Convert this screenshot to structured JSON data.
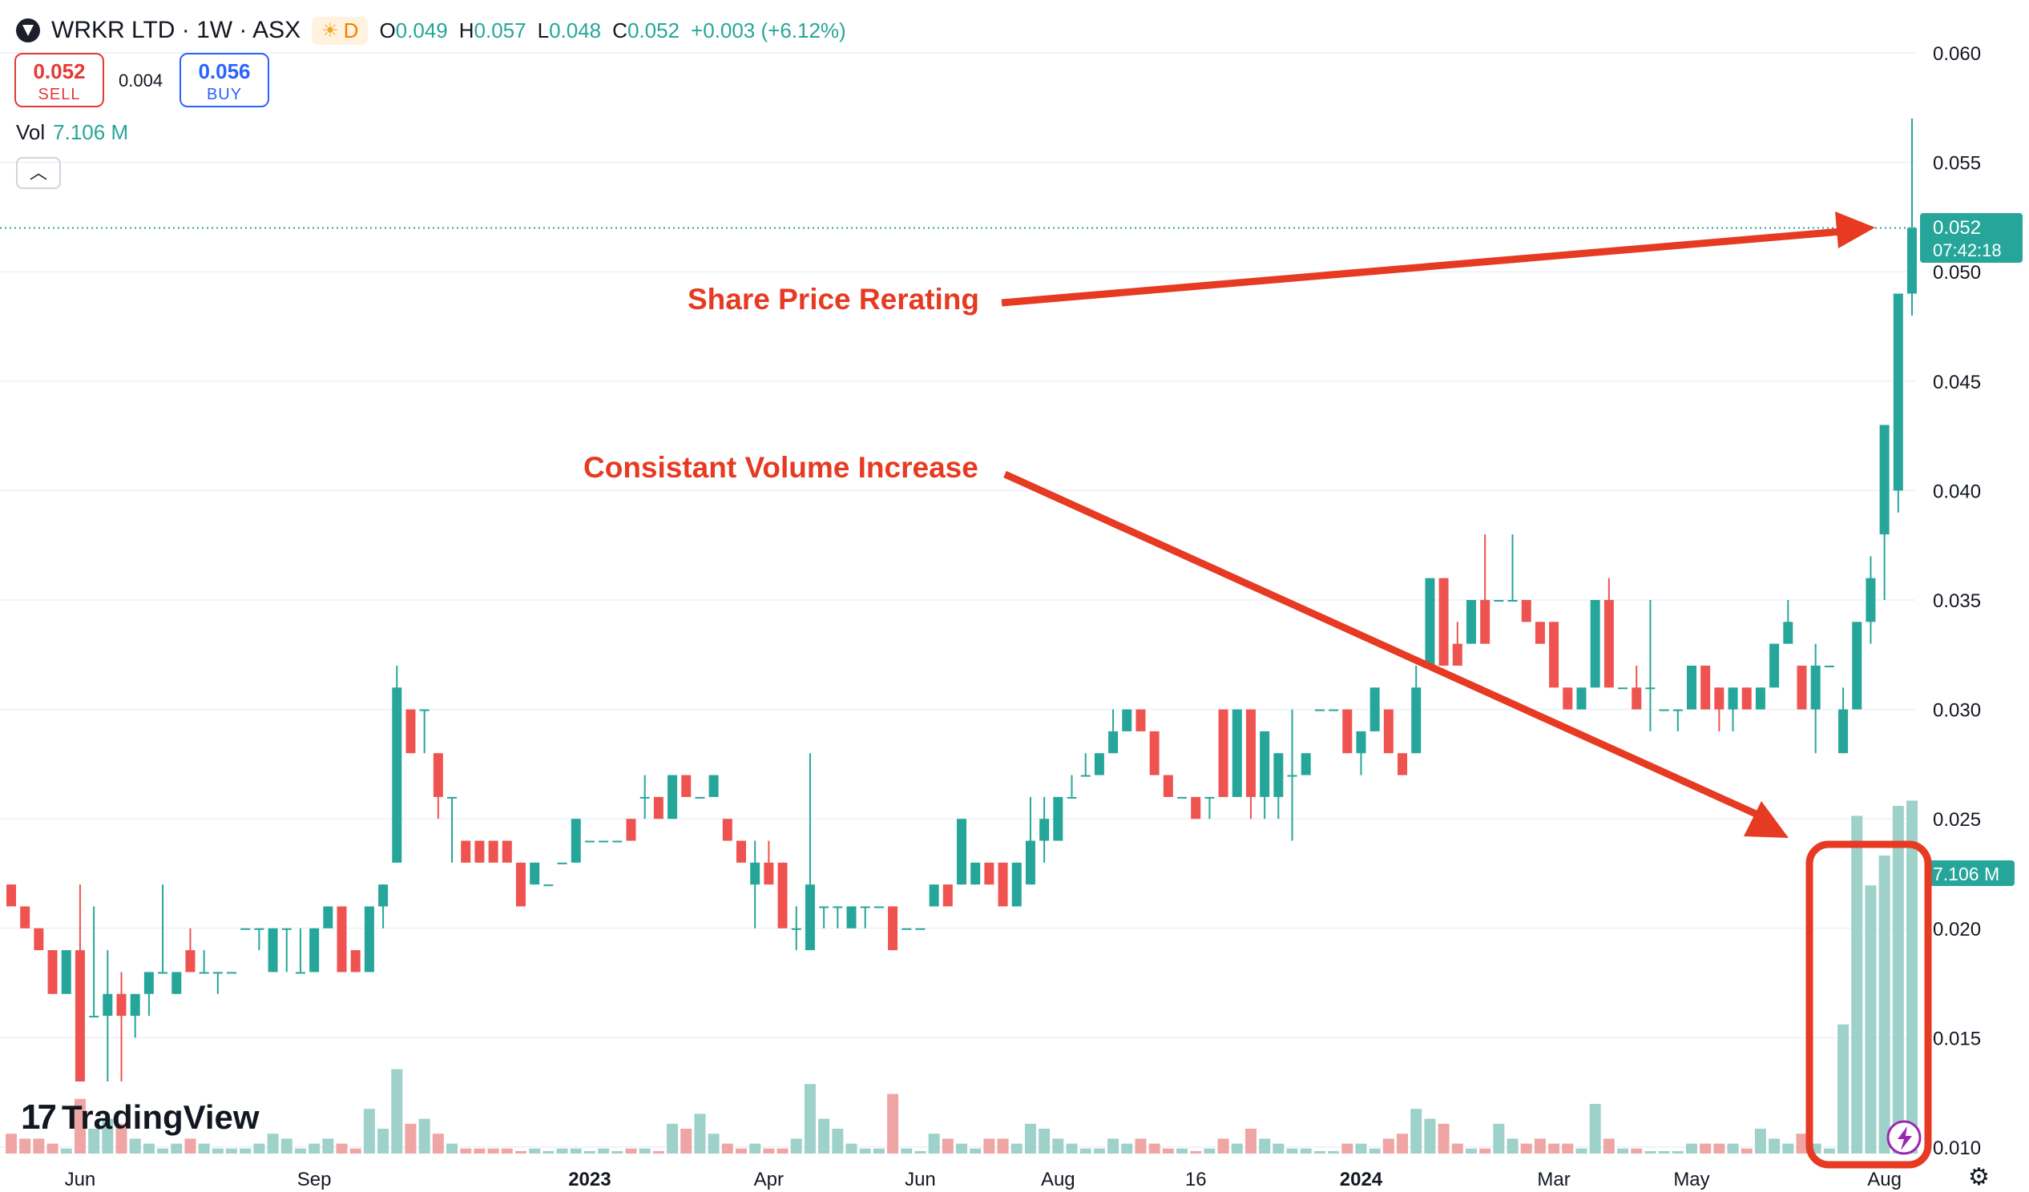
{
  "header": {
    "symbol": "WRKR LTD · 1W · ASX",
    "badge": "D",
    "ohlc": {
      "o_label": "O",
      "o": "0.049",
      "h_label": "H",
      "h": "0.057",
      "l_label": "L",
      "l": "0.048",
      "c_label": "C",
      "c": "0.052",
      "change": "+0.003 (+6.12%)"
    }
  },
  "trade": {
    "sell_price": "0.052",
    "sell_label": "SELL",
    "spread": "0.004",
    "buy_price": "0.056",
    "buy_label": "BUY"
  },
  "volume_legend": {
    "label": "Vol",
    "value": "7.106 M"
  },
  "collapse_icon": "chevron-up-icon",
  "branding": "TradingView",
  "price_badge": {
    "price": "0.052",
    "countdown": "07:42:18"
  },
  "volume_badge": "7.106 M",
  "annotations": {
    "share_price": "Share Price Rerating",
    "volume": "Consistant Volume Increase"
  },
  "colors": {
    "up": "#26a69a",
    "down": "#ef5350",
    "vol_up": "#9ed1ca",
    "vol_down": "#efa5a4",
    "annotation": "#e63a22",
    "grid": "#f0f3fa",
    "text": "#131722"
  },
  "chart_data": {
    "type": "candlestick",
    "title": "WRKR LTD · 1W · ASX",
    "y_ticks": [
      "0.060",
      "0.055",
      "0.050",
      "0.045",
      "0.040",
      "0.035",
      "0.030",
      "0.025",
      "0.020",
      "0.015",
      "0.010"
    ],
    "ylim": [
      0.01,
      0.06
    ],
    "x_labels": [
      "Jun",
      "Sep",
      "2023",
      "Apr",
      "Jun",
      "Aug",
      "16",
      "2024",
      "Mar",
      "May",
      "Aug"
    ],
    "candles": [
      {
        "o": 0.022,
        "h": 0.022,
        "l": 0.021,
        "c": 0.021,
        "v": 0.4
      },
      {
        "o": 0.021,
        "h": 0.021,
        "l": 0.02,
        "c": 0.02,
        "v": 0.3
      },
      {
        "o": 0.02,
        "h": 0.02,
        "l": 0.019,
        "c": 0.019,
        "v": 0.3
      },
      {
        "o": 0.019,
        "h": 0.019,
        "l": 0.017,
        "c": 0.017,
        "v": 0.2
      },
      {
        "o": 0.017,
        "h": 0.019,
        "l": 0.017,
        "c": 0.019,
        "v": 0.1
      },
      {
        "o": 0.019,
        "h": 0.022,
        "l": 0.013,
        "c": 0.013,
        "v": 1.1
      },
      {
        "o": 0.016,
        "h": 0.021,
        "l": 0.016,
        "c": 0.016,
        "v": 0.5
      },
      {
        "o": 0.016,
        "h": 0.019,
        "l": 0.013,
        "c": 0.017,
        "v": 0.7
      },
      {
        "o": 0.017,
        "h": 0.018,
        "l": 0.013,
        "c": 0.016,
        "v": 0.6
      },
      {
        "o": 0.016,
        "h": 0.017,
        "l": 0.015,
        "c": 0.017,
        "v": 0.3
      },
      {
        "o": 0.017,
        "h": 0.018,
        "l": 0.016,
        "c": 0.018,
        "v": 0.2
      },
      {
        "o": 0.018,
        "h": 0.022,
        "l": 0.018,
        "c": 0.018,
        "v": 0.1
      },
      {
        "o": 0.017,
        "h": 0.018,
        "l": 0.017,
        "c": 0.018,
        "v": 0.2
      },
      {
        "o": 0.019,
        "h": 0.02,
        "l": 0.018,
        "c": 0.018,
        "v": 0.3
      },
      {
        "o": 0.018,
        "h": 0.019,
        "l": 0.018,
        "c": 0.018,
        "v": 0.2
      },
      {
        "o": 0.018,
        "h": 0.018,
        "l": 0.017,
        "c": 0.018,
        "v": 0.1
      },
      {
        "o": 0.018,
        "h": 0.018,
        "l": 0.018,
        "c": 0.018,
        "v": 0.1
      },
      {
        "o": 0.02,
        "h": 0.02,
        "l": 0.02,
        "c": 0.02,
        "v": 0.1
      },
      {
        "o": 0.02,
        "h": 0.02,
        "l": 0.019,
        "c": 0.02,
        "v": 0.2
      },
      {
        "o": 0.018,
        "h": 0.02,
        "l": 0.018,
        "c": 0.02,
        "v": 0.4
      },
      {
        "o": 0.02,
        "h": 0.02,
        "l": 0.018,
        "c": 0.02,
        "v": 0.3
      },
      {
        "o": 0.018,
        "h": 0.02,
        "l": 0.018,
        "c": 0.018,
        "v": 0.1
      },
      {
        "o": 0.018,
        "h": 0.02,
        "l": 0.018,
        "c": 0.02,
        "v": 0.2
      },
      {
        "o": 0.02,
        "h": 0.021,
        "l": 0.02,
        "c": 0.021,
        "v": 0.3
      },
      {
        "o": 0.021,
        "h": 0.021,
        "l": 0.018,
        "c": 0.018,
        "v": 0.2
      },
      {
        "o": 0.019,
        "h": 0.019,
        "l": 0.018,
        "c": 0.018,
        "v": 0.1
      },
      {
        "o": 0.018,
        "h": 0.021,
        "l": 0.018,
        "c": 0.021,
        "v": 0.9
      },
      {
        "o": 0.021,
        "h": 0.022,
        "l": 0.02,
        "c": 0.022,
        "v": 0.5
      },
      {
        "o": 0.023,
        "h": 0.032,
        "l": 0.023,
        "c": 0.031,
        "v": 1.7
      },
      {
        "o": 0.03,
        "h": 0.03,
        "l": 0.028,
        "c": 0.028,
        "v": 0.6
      },
      {
        "o": 0.03,
        "h": 0.03,
        "l": 0.028,
        "c": 0.03,
        "v": 0.7
      },
      {
        "o": 0.028,
        "h": 0.028,
        "l": 0.025,
        "c": 0.026,
        "v": 0.4
      },
      {
        "o": 0.026,
        "h": 0.026,
        "l": 0.023,
        "c": 0.026,
        "v": 0.2
      },
      {
        "o": 0.024,
        "h": 0.024,
        "l": 0.023,
        "c": 0.023,
        "v": 0.1
      },
      {
        "o": 0.024,
        "h": 0.024,
        "l": 0.023,
        "c": 0.023,
        "v": 0.1
      },
      {
        "o": 0.024,
        "h": 0.024,
        "l": 0.023,
        "c": 0.023,
        "v": 0.1
      },
      {
        "o": 0.024,
        "h": 0.024,
        "l": 0.023,
        "c": 0.023,
        "v": 0.1
      },
      {
        "o": 0.023,
        "h": 0.023,
        "l": 0.021,
        "c": 0.021,
        "v": 0.05
      },
      {
        "o": 0.022,
        "h": 0.023,
        "l": 0.022,
        "c": 0.023,
        "v": 0.1
      },
      {
        "o": 0.022,
        "h": 0.022,
        "l": 0.022,
        "c": 0.022,
        "v": 0.05
      },
      {
        "o": 0.023,
        "h": 0.023,
        "l": 0.023,
        "c": 0.023,
        "v": 0.1
      },
      {
        "o": 0.023,
        "h": 0.025,
        "l": 0.023,
        "c": 0.025,
        "v": 0.1
      },
      {
        "o": 0.024,
        "h": 0.024,
        "l": 0.024,
        "c": 0.024,
        "v": 0.05
      },
      {
        "o": 0.024,
        "h": 0.024,
        "l": 0.024,
        "c": 0.024,
        "v": 0.1
      },
      {
        "o": 0.024,
        "h": 0.024,
        "l": 0.024,
        "c": 0.024,
        "v": 0.05
      },
      {
        "o": 0.025,
        "h": 0.025,
        "l": 0.024,
        "c": 0.024,
        "v": 0.1
      },
      {
        "o": 0.026,
        "h": 0.027,
        "l": 0.025,
        "c": 0.026,
        "v": 0.1
      },
      {
        "o": 0.026,
        "h": 0.026,
        "l": 0.025,
        "c": 0.025,
        "v": 0.05
      },
      {
        "o": 0.025,
        "h": 0.027,
        "l": 0.025,
        "c": 0.027,
        "v": 0.6
      },
      {
        "o": 0.027,
        "h": 0.027,
        "l": 0.026,
        "c": 0.026,
        "v": 0.5
      },
      {
        "o": 0.026,
        "h": 0.026,
        "l": 0.026,
        "c": 0.026,
        "v": 0.8
      },
      {
        "o": 0.026,
        "h": 0.027,
        "l": 0.026,
        "c": 0.027,
        "v": 0.4
      },
      {
        "o": 0.025,
        "h": 0.025,
        "l": 0.024,
        "c": 0.024,
        "v": 0.2
      },
      {
        "o": 0.024,
        "h": 0.024,
        "l": 0.023,
        "c": 0.023,
        "v": 0.1
      },
      {
        "o": 0.022,
        "h": 0.024,
        "l": 0.02,
        "c": 0.023,
        "v": 0.2
      },
      {
        "o": 0.023,
        "h": 0.024,
        "l": 0.022,
        "c": 0.022,
        "v": 0.1
      },
      {
        "o": 0.023,
        "h": 0.023,
        "l": 0.02,
        "c": 0.02,
        "v": 0.1
      },
      {
        "o": 0.02,
        "h": 0.021,
        "l": 0.019,
        "c": 0.02,
        "v": 0.3
      },
      {
        "o": 0.019,
        "h": 0.028,
        "l": 0.019,
        "c": 0.022,
        "v": 1.4
      },
      {
        "o": 0.021,
        "h": 0.021,
        "l": 0.02,
        "c": 0.021,
        "v": 0.7
      },
      {
        "o": 0.021,
        "h": 0.021,
        "l": 0.02,
        "c": 0.021,
        "v": 0.5
      },
      {
        "o": 0.02,
        "h": 0.021,
        "l": 0.02,
        "c": 0.021,
        "v": 0.2
      },
      {
        "o": 0.021,
        "h": 0.021,
        "l": 0.02,
        "c": 0.021,
        "v": 0.1
      },
      {
        "o": 0.021,
        "h": 0.021,
        "l": 0.021,
        "c": 0.021,
        "v": 0.1
      },
      {
        "o": 0.021,
        "h": 0.021,
        "l": 0.019,
        "c": 0.019,
        "v": 1.2
      },
      {
        "o": 0.02,
        "h": 0.02,
        "l": 0.02,
        "c": 0.02,
        "v": 0.1
      },
      {
        "o": 0.02,
        "h": 0.02,
        "l": 0.02,
        "c": 0.02,
        "v": 0.05
      },
      {
        "o": 0.021,
        "h": 0.022,
        "l": 0.021,
        "c": 0.022,
        "v": 0.4
      },
      {
        "o": 0.022,
        "h": 0.022,
        "l": 0.021,
        "c": 0.021,
        "v": 0.3
      },
      {
        "o": 0.022,
        "h": 0.025,
        "l": 0.022,
        "c": 0.025,
        "v": 0.2
      },
      {
        "o": 0.022,
        "h": 0.023,
        "l": 0.022,
        "c": 0.023,
        "v": 0.1
      },
      {
        "o": 0.023,
        "h": 0.023,
        "l": 0.022,
        "c": 0.022,
        "v": 0.3
      },
      {
        "o": 0.023,
        "h": 0.023,
        "l": 0.021,
        "c": 0.021,
        "v": 0.3
      },
      {
        "o": 0.021,
        "h": 0.023,
        "l": 0.021,
        "c": 0.023,
        "v": 0.2
      },
      {
        "o": 0.022,
        "h": 0.026,
        "l": 0.022,
        "c": 0.024,
        "v": 0.6
      },
      {
        "o": 0.024,
        "h": 0.026,
        "l": 0.023,
        "c": 0.025,
        "v": 0.5
      },
      {
        "o": 0.024,
        "h": 0.026,
        "l": 0.024,
        "c": 0.026,
        "v": 0.3
      },
      {
        "o": 0.026,
        "h": 0.027,
        "l": 0.026,
        "c": 0.026,
        "v": 0.2
      },
      {
        "o": 0.027,
        "h": 0.028,
        "l": 0.027,
        "c": 0.027,
        "v": 0.1
      },
      {
        "o": 0.027,
        "h": 0.028,
        "l": 0.027,
        "c": 0.028,
        "v": 0.1
      },
      {
        "o": 0.028,
        "h": 0.03,
        "l": 0.028,
        "c": 0.029,
        "v": 0.3
      },
      {
        "o": 0.029,
        "h": 0.03,
        "l": 0.029,
        "c": 0.03,
        "v": 0.2
      },
      {
        "o": 0.03,
        "h": 0.03,
        "l": 0.029,
        "c": 0.029,
        "v": 0.3
      },
      {
        "o": 0.029,
        "h": 0.029,
        "l": 0.027,
        "c": 0.027,
        "v": 0.2
      },
      {
        "o": 0.027,
        "h": 0.027,
        "l": 0.026,
        "c": 0.026,
        "v": 0.1
      },
      {
        "o": 0.026,
        "h": 0.026,
        "l": 0.026,
        "c": 0.026,
        "v": 0.1
      },
      {
        "o": 0.026,
        "h": 0.026,
        "l": 0.025,
        "c": 0.025,
        "v": 0.05
      },
      {
        "o": 0.026,
        "h": 0.026,
        "l": 0.025,
        "c": 0.026,
        "v": 0.1
      },
      {
        "o": 0.03,
        "h": 0.03,
        "l": 0.026,
        "c": 0.026,
        "v": 0.3
      },
      {
        "o": 0.026,
        "h": 0.03,
        "l": 0.026,
        "c": 0.03,
        "v": 0.2
      },
      {
        "o": 0.03,
        "h": 0.03,
        "l": 0.025,
        "c": 0.026,
        "v": 0.5
      },
      {
        "o": 0.026,
        "h": 0.029,
        "l": 0.025,
        "c": 0.029,
        "v": 0.3
      },
      {
        "o": 0.026,
        "h": 0.028,
        "l": 0.025,
        "c": 0.028,
        "v": 0.2
      },
      {
        "o": 0.027,
        "h": 0.03,
        "l": 0.024,
        "c": 0.027,
        "v": 0.1
      },
      {
        "o": 0.027,
        "h": 0.028,
        "l": 0.027,
        "c": 0.028,
        "v": 0.1
      },
      {
        "o": 0.03,
        "h": 0.03,
        "l": 0.03,
        "c": 0.03,
        "v": 0.05
      },
      {
        "o": 0.03,
        "h": 0.03,
        "l": 0.03,
        "c": 0.03,
        "v": 0.05
      },
      {
        "o": 0.03,
        "h": 0.03,
        "l": 0.028,
        "c": 0.028,
        "v": 0.2
      },
      {
        "o": 0.028,
        "h": 0.029,
        "l": 0.027,
        "c": 0.029,
        "v": 0.2
      },
      {
        "o": 0.029,
        "h": 0.031,
        "l": 0.029,
        "c": 0.031,
        "v": 0.1
      },
      {
        "o": 0.03,
        "h": 0.03,
        "l": 0.028,
        "c": 0.028,
        "v": 0.3
      },
      {
        "o": 0.028,
        "h": 0.028,
        "l": 0.027,
        "c": 0.027,
        "v": 0.4
      },
      {
        "o": 0.028,
        "h": 0.032,
        "l": 0.028,
        "c": 0.031,
        "v": 0.9
      },
      {
        "o": 0.032,
        "h": 0.036,
        "l": 0.032,
        "c": 0.036,
        "v": 0.7
      },
      {
        "o": 0.036,
        "h": 0.036,
        "l": 0.032,
        "c": 0.032,
        "v": 0.6
      },
      {
        "o": 0.033,
        "h": 0.034,
        "l": 0.032,
        "c": 0.032,
        "v": 0.2
      },
      {
        "o": 0.033,
        "h": 0.035,
        "l": 0.033,
        "c": 0.035,
        "v": 0.1
      },
      {
        "o": 0.035,
        "h": 0.038,
        "l": 0.033,
        "c": 0.033,
        "v": 0.1
      },
      {
        "o": 0.035,
        "h": 0.035,
        "l": 0.035,
        "c": 0.035,
        "v": 0.6
      },
      {
        "o": 0.035,
        "h": 0.038,
        "l": 0.035,
        "c": 0.035,
        "v": 0.3
      },
      {
        "o": 0.035,
        "h": 0.035,
        "l": 0.034,
        "c": 0.034,
        "v": 0.2
      },
      {
        "o": 0.034,
        "h": 0.034,
        "l": 0.033,
        "c": 0.033,
        "v": 0.3
      },
      {
        "o": 0.034,
        "h": 0.034,
        "l": 0.031,
        "c": 0.031,
        "v": 0.2
      },
      {
        "o": 0.031,
        "h": 0.031,
        "l": 0.03,
        "c": 0.03,
        "v": 0.2
      },
      {
        "o": 0.03,
        "h": 0.031,
        "l": 0.03,
        "c": 0.031,
        "v": 0.1
      },
      {
        "o": 0.031,
        "h": 0.035,
        "l": 0.031,
        "c": 0.035,
        "v": 1.0
      },
      {
        "o": 0.035,
        "h": 0.036,
        "l": 0.031,
        "c": 0.031,
        "v": 0.3
      },
      {
        "o": 0.031,
        "h": 0.031,
        "l": 0.031,
        "c": 0.031,
        "v": 0.1
      },
      {
        "o": 0.031,
        "h": 0.032,
        "l": 0.03,
        "c": 0.03,
        "v": 0.1
      },
      {
        "o": 0.031,
        "h": 0.035,
        "l": 0.029,
        "c": 0.031,
        "v": 0.05
      },
      {
        "o": 0.03,
        "h": 0.03,
        "l": 0.03,
        "c": 0.03,
        "v": 0.05
      },
      {
        "o": 0.03,
        "h": 0.03,
        "l": 0.029,
        "c": 0.03,
        "v": 0.05
      },
      {
        "o": 0.03,
        "h": 0.032,
        "l": 0.03,
        "c": 0.032,
        "v": 0.2
      },
      {
        "o": 0.032,
        "h": 0.032,
        "l": 0.03,
        "c": 0.03,
        "v": 0.2
      },
      {
        "o": 0.031,
        "h": 0.031,
        "l": 0.029,
        "c": 0.03,
        "v": 0.2
      },
      {
        "o": 0.03,
        "h": 0.031,
        "l": 0.029,
        "c": 0.031,
        "v": 0.2
      },
      {
        "o": 0.031,
        "h": 0.031,
        "l": 0.03,
        "c": 0.03,
        "v": 0.1
      },
      {
        "o": 0.03,
        "h": 0.031,
        "l": 0.03,
        "c": 0.031,
        "v": 0.5
      },
      {
        "o": 0.031,
        "h": 0.033,
        "l": 0.031,
        "c": 0.033,
        "v": 0.3
      },
      {
        "o": 0.033,
        "h": 0.035,
        "l": 0.033,
        "c": 0.034,
        "v": 0.2
      },
      {
        "o": 0.032,
        "h": 0.032,
        "l": 0.03,
        "c": 0.03,
        "v": 0.4
      },
      {
        "o": 0.03,
        "h": 0.033,
        "l": 0.028,
        "c": 0.032,
        "v": 0.2
      },
      {
        "o": 0.032,
        "h": 0.032,
        "l": 0.032,
        "c": 0.032,
        "v": 0.1
      },
      {
        "o": 0.028,
        "h": 0.031,
        "l": 0.028,
        "c": 0.03,
        "v": 2.6
      },
      {
        "o": 0.03,
        "h": 0.034,
        "l": 0.03,
        "c": 0.034,
        "v": 6.8
      },
      {
        "o": 0.034,
        "h": 0.037,
        "l": 0.033,
        "c": 0.036,
        "v": 5.4
      },
      {
        "o": 0.038,
        "h": 0.043,
        "l": 0.035,
        "c": 0.043,
        "v": 6.0
      },
      {
        "o": 0.04,
        "h": 0.049,
        "l": 0.039,
        "c": 0.049,
        "v": 7.0
      },
      {
        "o": 0.049,
        "h": 0.057,
        "l": 0.048,
        "c": 0.052,
        "v": 7.106
      }
    ]
  }
}
